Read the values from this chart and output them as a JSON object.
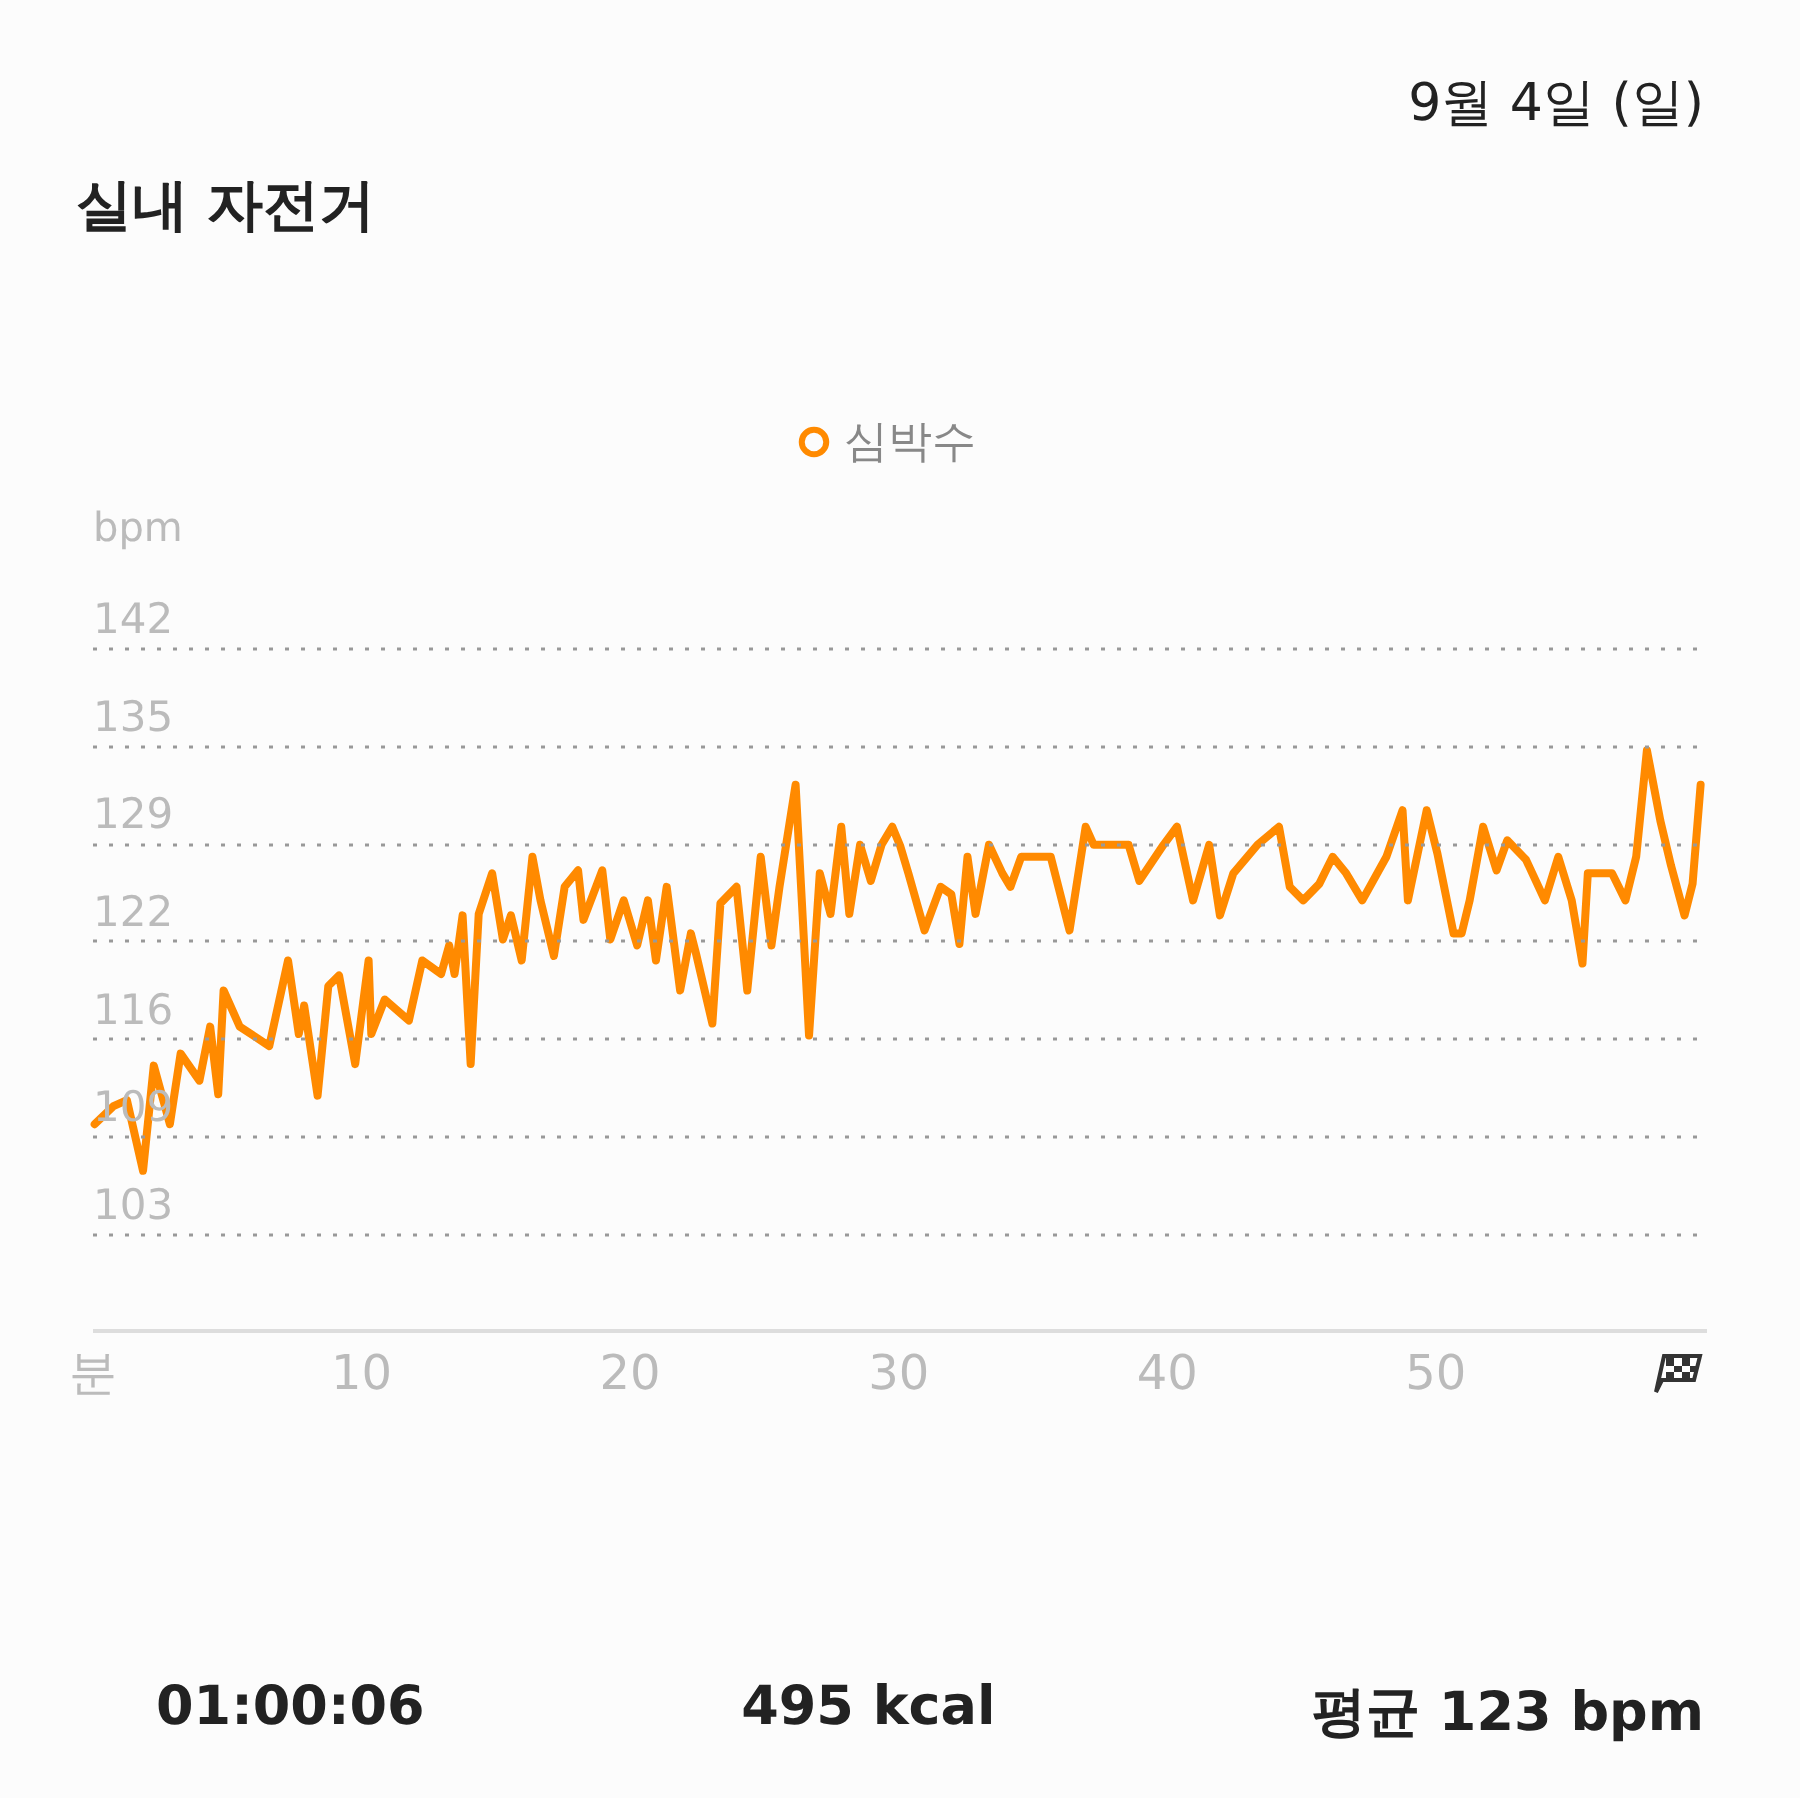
{
  "chart_data": {
    "type": "line",
    "title": "실내 자전거",
    "ylabel": "bpm",
    "annotations": [
      "9월 4일 (일)",
      "01:00:06",
      "495 kcal",
      "평균 123 bpm"
    ],
    "xlim": [
      0,
      60.1
    ],
    "xticks": [
      {
        "value": 0,
        "label": "분"
      },
      10,
      20,
      30,
      40,
      50
    ],
    "ylim": [
      96.6,
      142
    ],
    "yticks": [
      103,
      {
        "value": 109.5,
        "label": "109"
      },
      116,
      {
        "value": 122.5,
        "label": "122"
      },
      129,
      {
        "value": 135.5,
        "label": "135"
      },
      142
    ],
    "grid": "y",
    "legend": "top",
    "series": [
      {
        "name": "심박수",
        "color": "#ff8a00",
        "x": [
          0.1,
          0.8,
          1.3,
          1.9,
          2.3,
          2.9,
          3.3,
          4.0,
          4.4,
          4.7,
          4.9,
          5.5,
          6.6,
          7.3,
          7.7,
          7.9,
          8.4,
          8.8,
          9.2,
          9.8,
          10.3,
          10.4,
          10.9,
          11.8,
          12.3,
          13.0,
          13.3,
          13.5,
          13.8,
          14.1,
          14.4,
          14.9,
          15.3,
          15.6,
          16.0,
          16.4,
          16.7,
          17.2,
          17.6,
          18.1,
          18.3,
          19.0,
          19.3,
          19.8,
          20.3,
          20.7,
          21.0,
          21.4,
          21.9,
          22.3,
          22.5,
          23.1,
          23.4,
          24.0,
          24.4,
          24.9,
          25.3,
          25.6,
          26.2,
          26.7,
          27.1,
          27.5,
          27.9,
          28.2,
          28.6,
          29.0,
          29.4,
          29.8,
          30.1,
          30.4,
          31.0,
          31.6,
          32.0,
          32.3,
          32.6,
          32.9,
          33.4,
          33.9,
          34.2,
          34.6,
          35.1,
          35.7,
          36.4,
          37.0,
          37.3,
          37.9,
          38.6,
          39.0,
          39.9,
          40.4,
          41.0,
          41.6,
          42.0,
          42.5,
          43.4,
          44.2,
          44.6,
          45.1,
          45.7,
          46.2,
          46.7,
          47.3,
          48.2,
          48.8,
          49.0,
          49.7,
          50.1,
          50.7,
          51.0,
          51.3,
          51.8,
          52.3,
          52.7,
          53.4,
          54.1,
          54.6,
          55.1,
          55.5,
          55.7,
          56.6,
          57.1,
          57.5,
          57.9,
          58.4,
          58.8,
          59.3,
          59.6,
          59.9
        ],
        "values": [
          110.3,
          111.5,
          111.9,
          107.2,
          114.2,
          110.3,
          115.0,
          113.2,
          116.8,
          112.3,
          119.2,
          116.8,
          115.5,
          121.2,
          116.3,
          118.2,
          112.2,
          119.5,
          120.2,
          114.3,
          121.2,
          116.3,
          118.6,
          117.2,
          121.2,
          120.3,
          122.2,
          120.3,
          124.2,
          114.3,
          124.3,
          127.0,
          122.6,
          124.2,
          121.2,
          128.1,
          125.2,
          121.5,
          126.1,
          127.2,
          123.9,
          127.2,
          122.6,
          125.2,
          122.2,
          125.2,
          121.2,
          126.1,
          119.2,
          123.0,
          121.6,
          117.0,
          125.0,
          126.1,
          119.2,
          128.1,
          122.2,
          126.1,
          132.9,
          116.2,
          127.0,
          124.3,
          130.1,
          124.3,
          128.9,
          126.5,
          128.9,
          130.1,
          128.8,
          127.0,
          123.2,
          126.1,
          125.6,
          122.3,
          128.1,
          124.3,
          128.9,
          127.0,
          126.1,
          128.1,
          128.1,
          128.1,
          123.2,
          130.1,
          128.9,
          128.9,
          128.9,
          126.5,
          128.9,
          130.1,
          125.2,
          128.9,
          124.2,
          127.0,
          128.9,
          130.1,
          126.1,
          125.2,
          126.3,
          128.1,
          127.0,
          125.2,
          128.1,
          131.2,
          125.2,
          131.2,
          128.3,
          123.0,
          123.0,
          125.2,
          130.1,
          127.2,
          129.2,
          127.9,
          125.2,
          128.1,
          125.2,
          121.0,
          127.0,
          127.0,
          125.2,
          128.1,
          135.2,
          130.5,
          127.5,
          124.2,
          126.3,
          132.9
        ]
      }
    ]
  }
}
